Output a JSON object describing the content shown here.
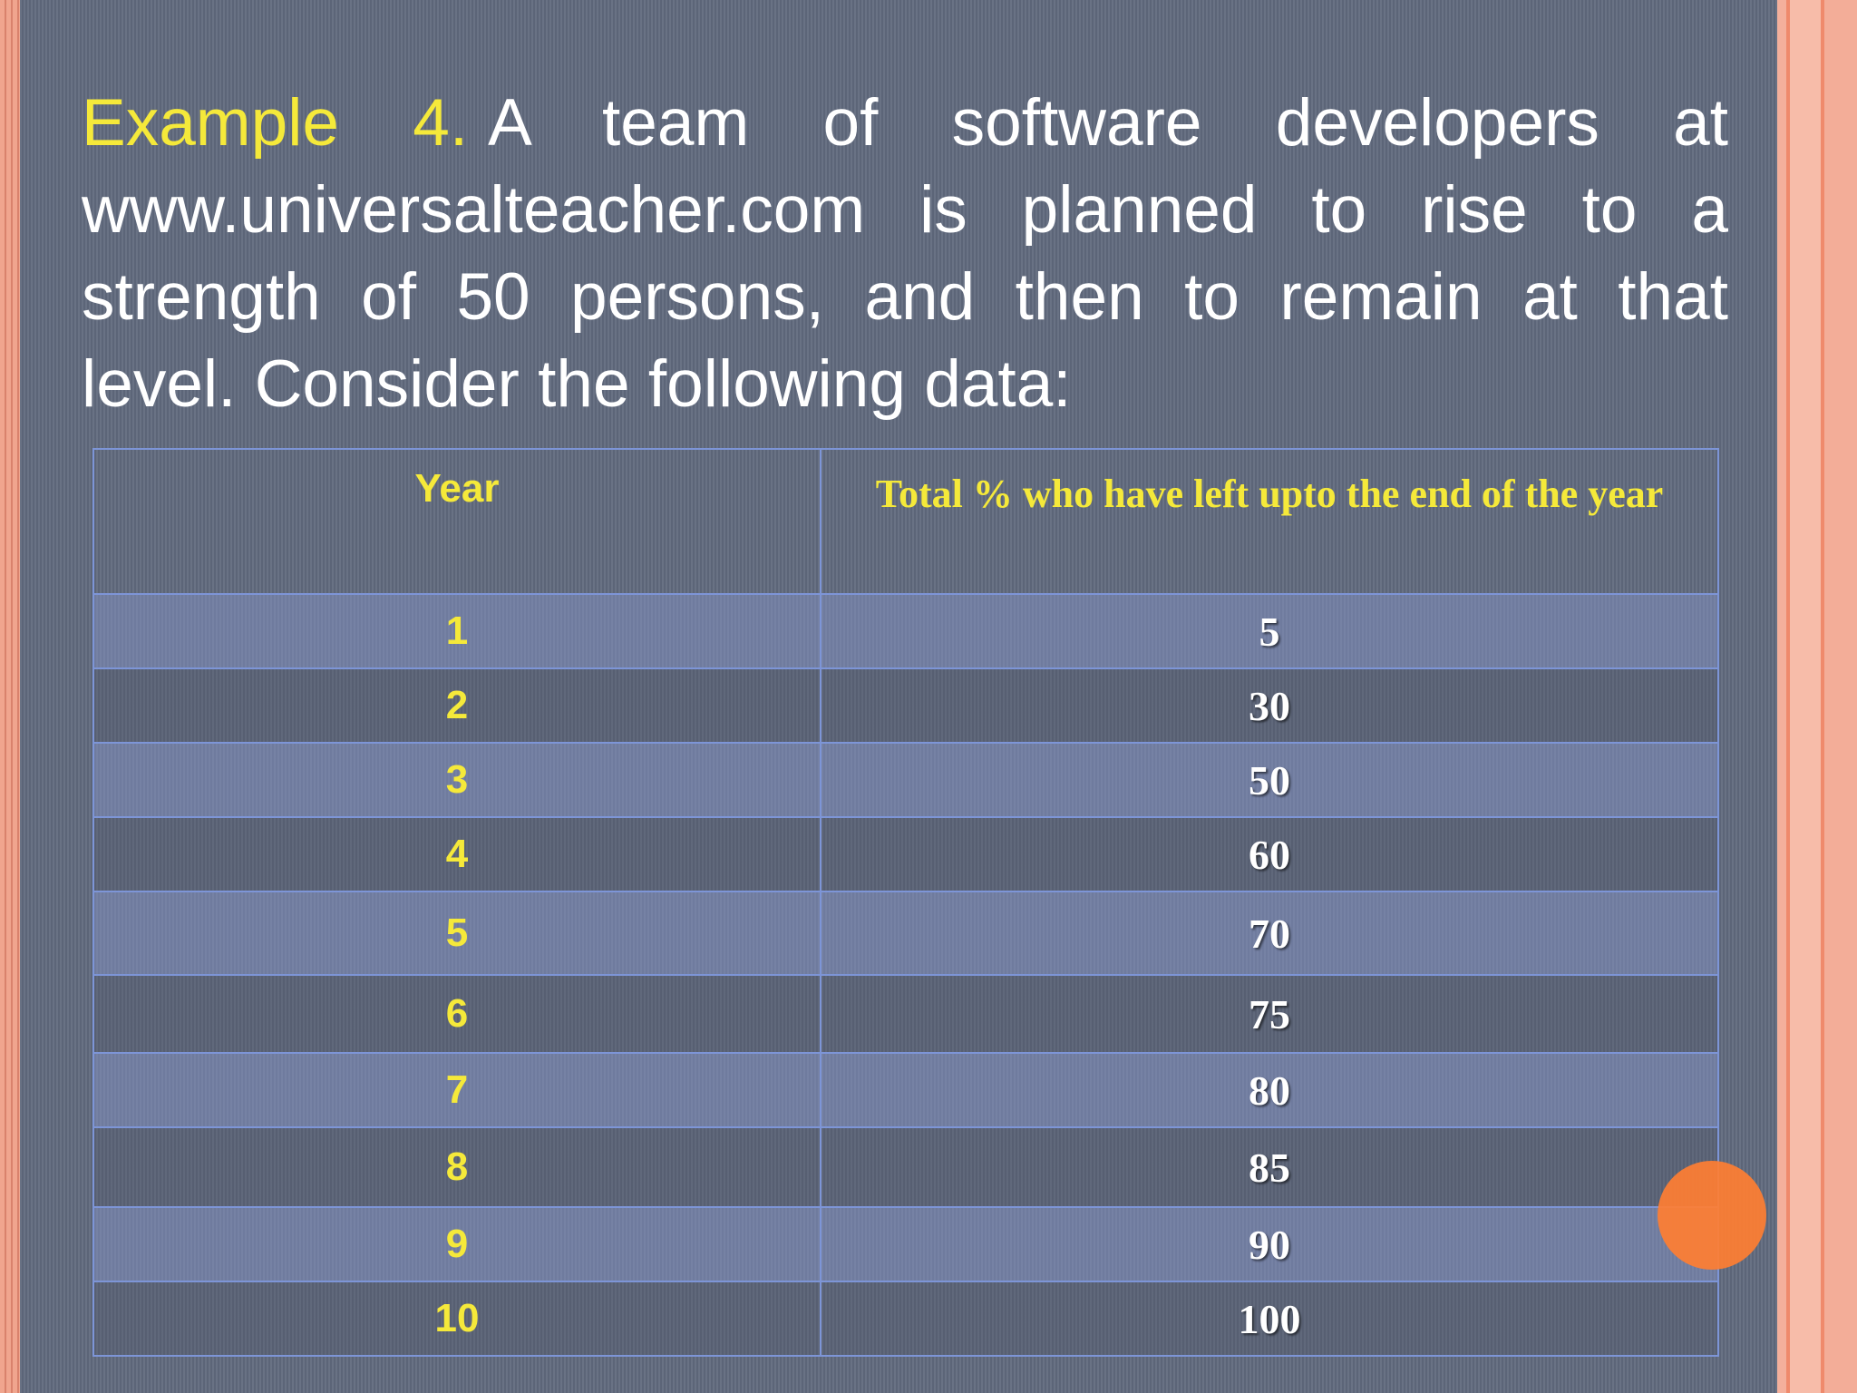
{
  "slide": {
    "heading_label": "Example 4.",
    "heading_text": "A team of software developers at www.universalteacher.com is planned to rise to a strength of 50 persons, and then to remain at that level. Consider the following data:",
    "heading_line1": "A team of software developers at",
    "heading_line2": "www.universalteacher.com is planned to rise to a",
    "heading_line3": "strength of 50 persons, and then to remain at that",
    "heading_line4": "level. Consider the following data:"
  },
  "table": {
    "headers": [
      "Year",
      "Total % who have left upto the end of the year"
    ],
    "rows": [
      [
        "1",
        "5"
      ],
      [
        "2",
        "30"
      ],
      [
        "3",
        "50"
      ],
      [
        "4",
        "60"
      ],
      [
        "5",
        "70"
      ],
      [
        "6",
        "75"
      ],
      [
        "7",
        "80"
      ],
      [
        "8",
        "85"
      ],
      [
        "9",
        "90"
      ],
      [
        "10",
        "100"
      ]
    ]
  },
  "colors": {
    "panel": "#616a7e",
    "accent_yellow": "#f5e93a",
    "table_border": "#7d95d7",
    "band": "#e9a48f",
    "dot": "#ff7e32"
  }
}
